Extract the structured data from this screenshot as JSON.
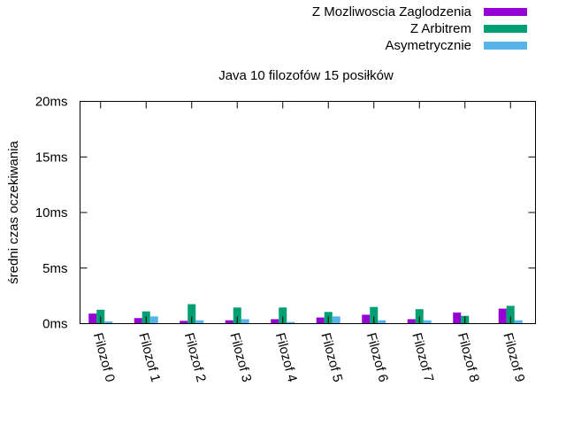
{
  "chart_data": {
    "type": "bar",
    "title": "Java 10 filozofów 15 posiłków",
    "xlabel": "",
    "ylabel": "średni czas oczekiwania",
    "ylim": [
      0,
      20
    ],
    "yticks": [
      {
        "value": 0,
        "label": "0ms"
      },
      {
        "value": 5,
        "label": "5ms"
      },
      {
        "value": 10,
        "label": "10ms"
      },
      {
        "value": 15,
        "label": "15ms"
      },
      {
        "value": 20,
        "label": "20ms"
      }
    ],
    "categories": [
      "Filozof 0",
      "Filozof 1",
      "Filozof 2",
      "Filozof 3",
      "Filozof 4",
      "Filozof 5",
      "Filozof 6",
      "Filozof 7",
      "Filozof 8",
      "Filozof 9"
    ],
    "series": [
      {
        "name": "Z Mozliwoscia Zaglodzenia",
        "color": "#9400d3",
        "values": [
          0.9,
          0.5,
          0.25,
          0.3,
          0.4,
          0.55,
          0.8,
          0.4,
          1.0,
          1.35
        ]
      },
      {
        "name": "Z Arbitrem",
        "color": "#009e73",
        "values": [
          1.25,
          1.1,
          1.75,
          1.45,
          1.45,
          1.05,
          1.5,
          1.3,
          0.7,
          1.6
        ]
      },
      {
        "name": "Asymetrycznie",
        "color": "#56b4e9",
        "values": [
          0.2,
          0.65,
          0.3,
          0.4,
          0.15,
          0.65,
          0.3,
          0.3,
          0.05,
          0.3
        ]
      }
    ],
    "legend_position": "top-right",
    "grid": false
  }
}
